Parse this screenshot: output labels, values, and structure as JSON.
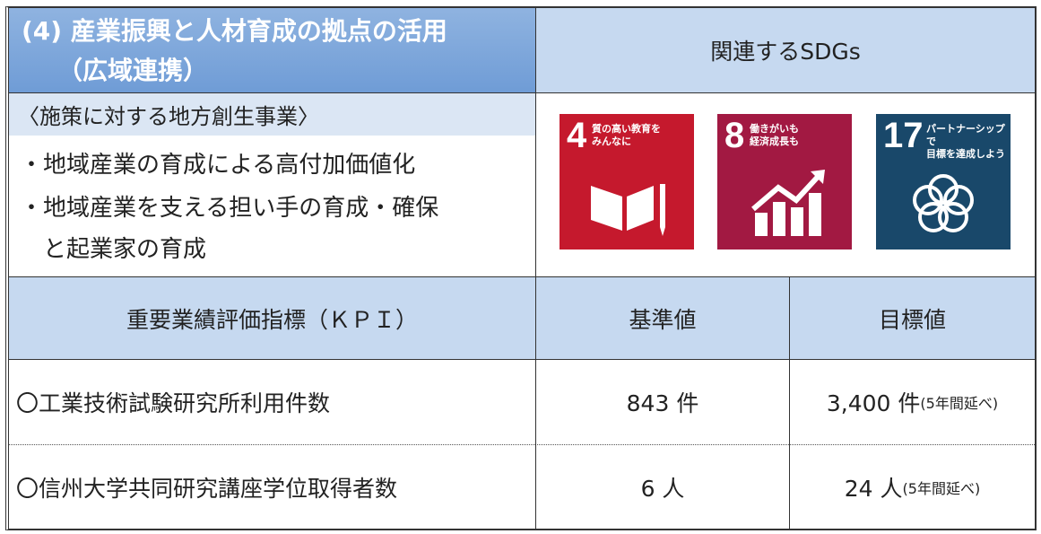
{
  "header": {
    "title": [
      "(4) 産業振興と人材育成の拠点の活用",
      "（広域連携）"
    ],
    "sdgs_title": "関連するSDGs"
  },
  "measures": {
    "heading": "〈施策に対する地方創生事業〉",
    "items": [
      "・地域産業の育成による高付加価値化",
      "・地域産業を支える担い手の育成・確保",
      "と起業家の育成"
    ]
  },
  "sdgs": [
    {
      "number": "4",
      "label": [
        "質の高い教育を",
        "みんなに"
      ]
    },
    {
      "number": "8",
      "label": [
        "働きがいも",
        "経済成長も"
      ]
    },
    {
      "number": "17",
      "label": [
        "パートナーシップで",
        "目標を達成しよう"
      ]
    }
  ],
  "table": {
    "columns": [
      "重要業績評価指標（ＫＰＩ）",
      "基準値",
      "目標値"
    ],
    "rows": [
      {
        "indicator": "〇工業技術試験研究所利用件数",
        "baseline": "843 件",
        "target": "3,400 件",
        "note": "(5年間延べ)"
      },
      {
        "indicator": "〇信州大学共同研究講座学位取得者数",
        "baseline": "6 人",
        "target": "24 人",
        "note": "(5年間延べ)"
      }
    ]
  }
}
